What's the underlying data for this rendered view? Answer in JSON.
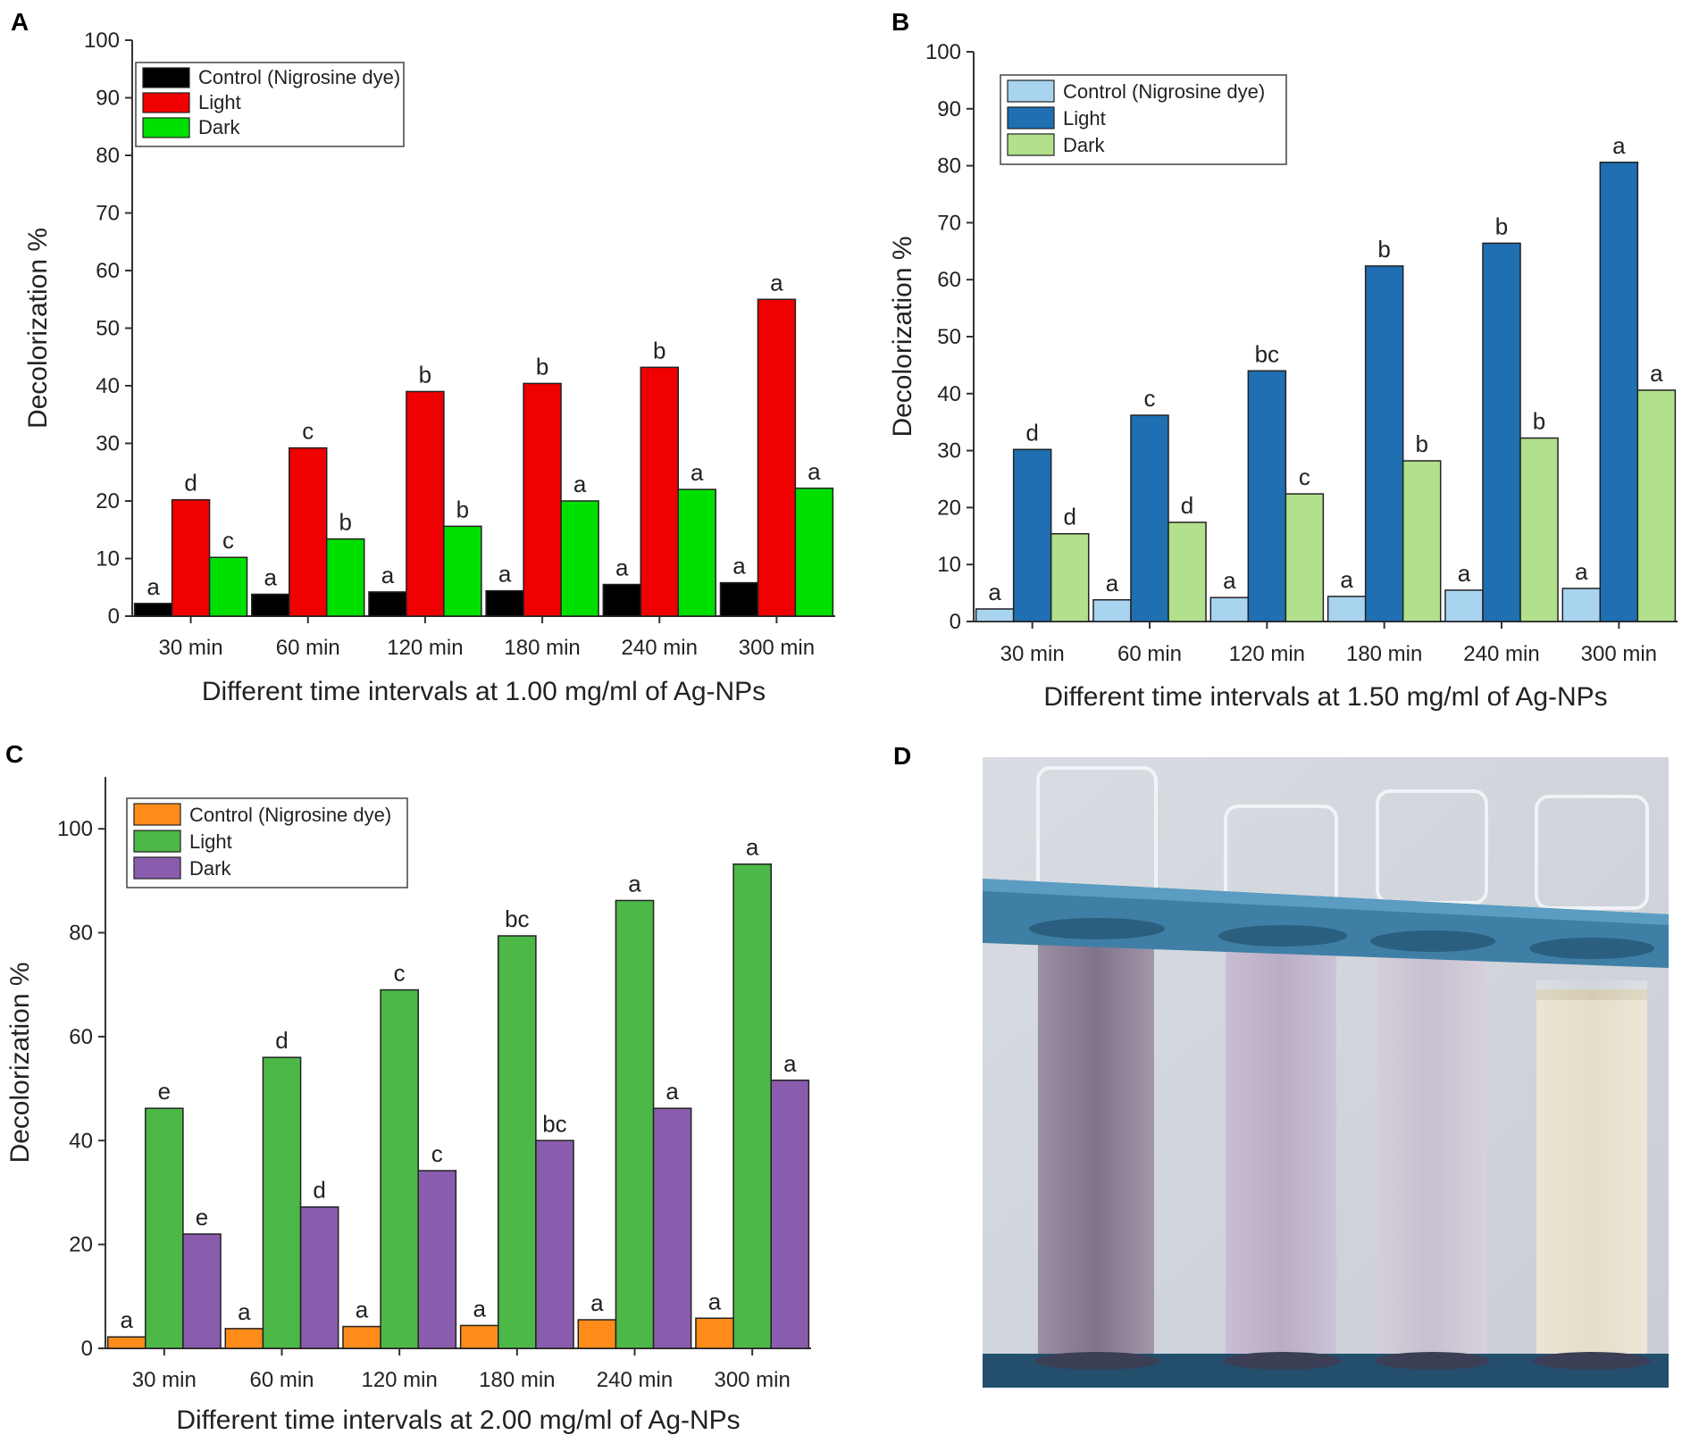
{
  "figure": {
    "panels": [
      "A",
      "B",
      "C",
      "D"
    ],
    "photo_panel_label": "D"
  },
  "chart_data": [
    {
      "panel": "A",
      "type": "bar",
      "title": "",
      "xlabel": "Different time intervals at 1.00 mg/ml of Ag-NPs",
      "ylabel": "Decolorization %",
      "ylim": [
        0,
        100
      ],
      "yticks": [
        0,
        10,
        20,
        30,
        40,
        50,
        60,
        70,
        80,
        90,
        100
      ],
      "categories": [
        "30 min",
        "60 min",
        "120 min",
        "180 min",
        "240 min",
        "300 min"
      ],
      "legend_position": "top-left",
      "series": [
        {
          "name": "Control (Nigrosine dye)",
          "color": "#000000",
          "values": [
            2.2,
            3.8,
            4.2,
            4.4,
            5.5,
            5.8
          ],
          "labels": [
            "a",
            "a",
            "a",
            "a",
            "a",
            "a"
          ]
        },
        {
          "name": "Light",
          "color": "#f00000",
          "values": [
            20.2,
            29.2,
            39.0,
            40.4,
            43.2,
            55.0
          ],
          "labels": [
            "d",
            "c",
            "b",
            "b",
            "b",
            "a"
          ]
        },
        {
          "name": "Dark",
          "color": "#00e000",
          "values": [
            10.2,
            13.4,
            15.6,
            20.0,
            22.0,
            22.2
          ],
          "labels": [
            "c",
            "b",
            "b",
            "a",
            "a",
            "a"
          ]
        }
      ]
    },
    {
      "panel": "B",
      "type": "bar",
      "title": "",
      "xlabel": "Different time intervals at 1.50 mg/ml of Ag-NPs",
      "ylabel": "Decolorization %",
      "ylim": [
        0,
        100
      ],
      "yticks": [
        0,
        10,
        20,
        30,
        40,
        50,
        60,
        70,
        80,
        90,
        100
      ],
      "categories": [
        "30 min",
        "60 min",
        "120 min",
        "180 min",
        "240 min",
        "300 min"
      ],
      "legend_position": "top-left",
      "series": [
        {
          "name": "Control (Nigrosine dye)",
          "color": "#a8d4f0",
          "values": [
            2.2,
            3.8,
            4.2,
            4.4,
            5.5,
            5.8
          ],
          "labels": [
            "a",
            "a",
            "a",
            "a",
            "a",
            "a"
          ]
        },
        {
          "name": "Light",
          "color": "#1f6fb2",
          "values": [
            30.2,
            36.2,
            44.0,
            62.4,
            66.4,
            80.6
          ],
          "labels": [
            "d",
            "c",
            "bc",
            "b",
            "b",
            "a"
          ]
        },
        {
          "name": "Dark",
          "color": "#b2e08c",
          "values": [
            15.4,
            17.4,
            22.4,
            28.2,
            32.2,
            40.6
          ],
          "labels": [
            "d",
            "d",
            "c",
            "b",
            "b",
            "a"
          ]
        }
      ]
    },
    {
      "panel": "C",
      "type": "bar",
      "title": "",
      "xlabel": "Different time intervals at 2.00 mg/ml of Ag-NPs",
      "ylabel": "Decolorization %",
      "ylim": [
        0,
        110
      ],
      "yticks": [
        0,
        20,
        40,
        60,
        80,
        100
      ],
      "categories": [
        "30 min",
        "60 min",
        "120 min",
        "180 min",
        "240 min",
        "300 min"
      ],
      "legend_position": "top-left",
      "series": [
        {
          "name": "Control (Nigrosine dye)",
          "color": "#ff8c1a",
          "values": [
            2.2,
            3.8,
            4.2,
            4.4,
            5.5,
            5.8
          ],
          "labels": [
            "a",
            "a",
            "a",
            "a",
            "a",
            "a"
          ]
        },
        {
          "name": "Light",
          "color": "#4cb848",
          "values": [
            46.2,
            56.0,
            69.0,
            79.4,
            86.2,
            93.2
          ],
          "labels": [
            "e",
            "d",
            "c",
            "bc",
            "a",
            "a"
          ]
        },
        {
          "name": "Dark",
          "color": "#8a5cad",
          "values": [
            22.0,
            27.2,
            34.2,
            40.0,
            46.2,
            51.6
          ],
          "labels": [
            "e",
            "d",
            "c",
            "bc",
            "a",
            "a"
          ]
        }
      ]
    }
  ]
}
